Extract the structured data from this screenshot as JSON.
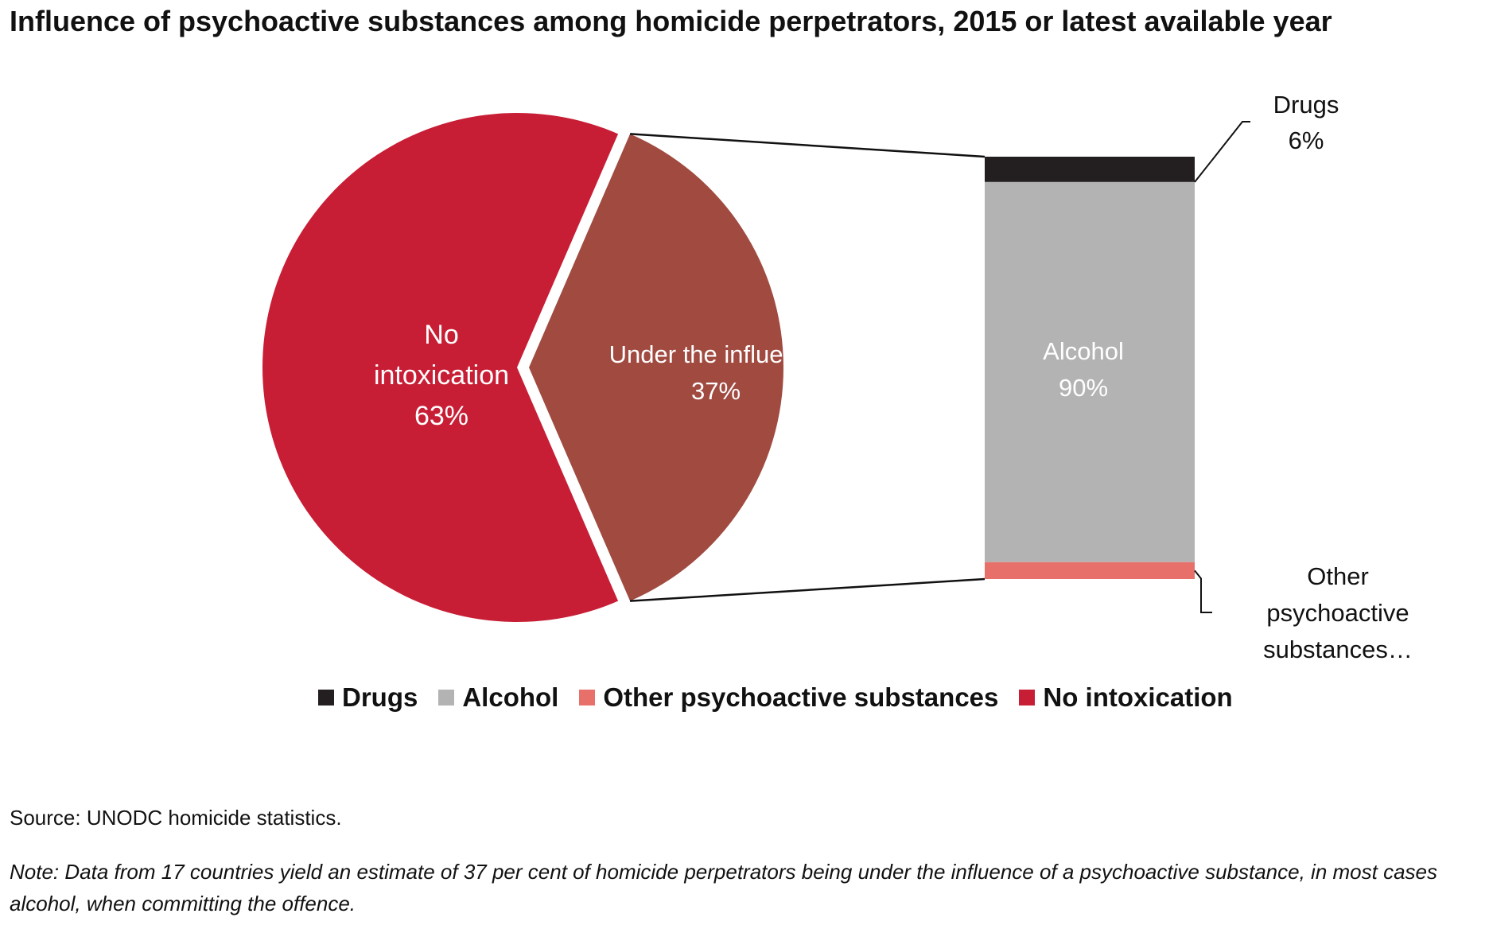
{
  "title": "Influence of psychoactive substances among homicide perpetrators, 2015 or latest available year",
  "source": "Source: UNODC homicide statistics.",
  "note": "Note: Data from 17 countries yield an estimate of 37 per cent of homicide perpetrators being under the influence of a psychoactive substance, in most cases alcohol, when committing the offence.",
  "colors": {
    "no_intoxication": "#c81e35",
    "under_influence": "#a04a40",
    "drugs": "#231f20",
    "alcohol": "#b3b3b3",
    "other": "#e8706a",
    "leader": "#111111"
  },
  "legend": [
    {
      "label": "Drugs",
      "color": "#231f20"
    },
    {
      "label": "Alcohol",
      "color": "#b3b3b3"
    },
    {
      "label": "Other psychoactive substances",
      "color": "#e8706a"
    },
    {
      "label": "No intoxication",
      "color": "#c81e35"
    }
  ],
  "chart_data": {
    "type": "pie",
    "variant": "bar-of-pie",
    "pie": {
      "slices": [
        {
          "label": "No intoxication",
          "value": 63,
          "display": "63%"
        },
        {
          "label": "Under the influence",
          "value": 37,
          "display": "37%"
        }
      ]
    },
    "bar": {
      "segments": [
        {
          "label": "Drugs",
          "value": 6,
          "display": "6%"
        },
        {
          "label": "Alcohol",
          "value": 90,
          "display": "90%"
        },
        {
          "label": "Other psychoactive substances…",
          "value": 4,
          "display": ""
        }
      ]
    },
    "legend_position": "bottom"
  }
}
